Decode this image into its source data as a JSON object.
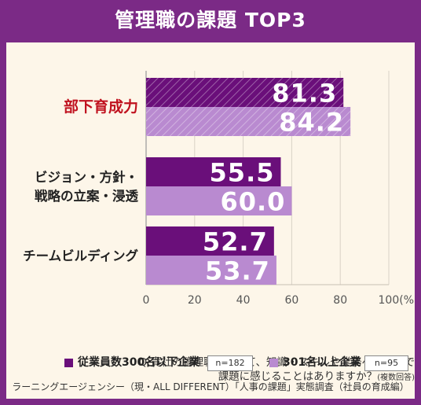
{
  "title": "管理職の課題 TOP3",
  "colors": {
    "frame": "#7b2a86",
    "panel": "#fdf6e9",
    "series1": "#6a0f7a",
    "series2": "#b98ad0",
    "highlight": "#c0121f"
  },
  "chart_data": {
    "type": "bar",
    "orientation": "horizontal",
    "categories": [
      "部下育成力",
      "ビジョン・方針・\n戦略の立案・浸透",
      "チームビルディング"
    ],
    "series": [
      {
        "name": "従業員数300名以下企業",
        "n_label": "n=182",
        "values": [
          81.3,
          55.5,
          52.7
        ]
      },
      {
        "name": "301名以上企業",
        "n_label": "n=95",
        "values": [
          84.2,
          60.0,
          53.7
        ]
      }
    ],
    "value_labels": [
      [
        "81.3",
        "55.5",
        "52.7"
      ],
      [
        "84.2",
        "60.0",
        "53.7"
      ]
    ],
    "highlighted_category": "部下育成力",
    "xlim": [
      0,
      100
    ],
    "xticks": [
      "0",
      "20",
      "40",
      "60",
      "80",
      "100(%)"
    ],
    "grid": true
  },
  "question": {
    "line1": "Q.貴社の管理職について、知識・スキルや業務への姿勢で",
    "line2": "課題に感じることはありますか？",
    "note": "(複数回答)"
  },
  "legend": {
    "series1_label": "従業員数300名以下企業",
    "series1_n": "n=182",
    "series2_label": "301名以上企業",
    "series2_n": "n=95"
  },
  "source": "ラーニングエージェンシー（現・ALL DIFFERENT）「人事の課題」実態調査（社員の育成編）"
}
